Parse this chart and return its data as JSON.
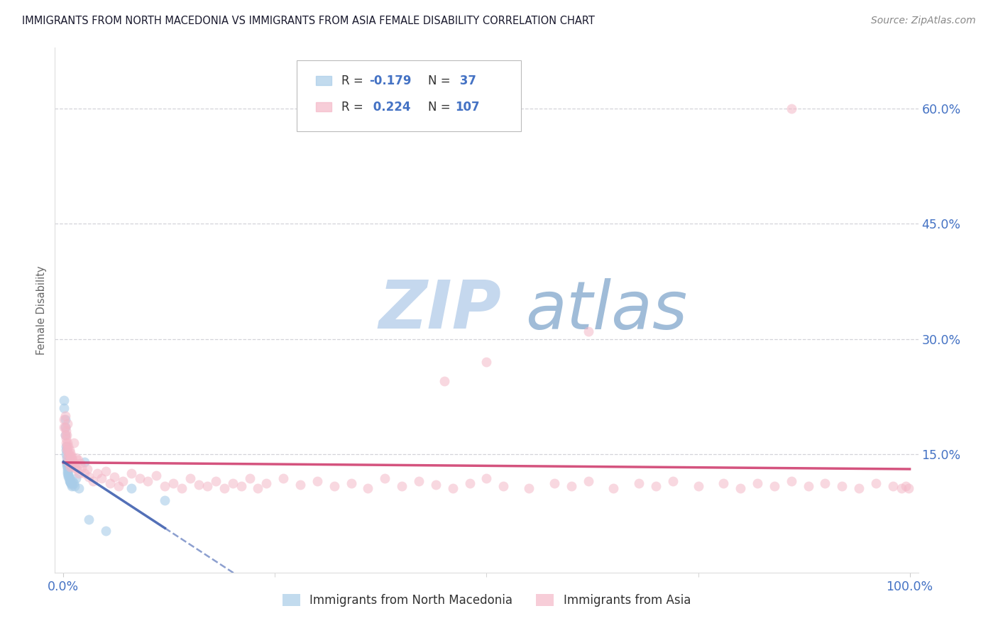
{
  "title": "IMMIGRANTS FROM NORTH MACEDONIA VS IMMIGRANTS FROM ASIA FEMALE DISABILITY CORRELATION CHART",
  "source": "Source: ZipAtlas.com",
  "ylabel": "Female Disability",
  "legend_blue_label": "Immigrants from North Macedonia",
  "legend_pink_label": "Immigrants from Asia",
  "blue_color": "#a8cce8",
  "pink_color": "#f4b8c8",
  "blue_line_color": "#4060b0",
  "pink_line_color": "#d04070",
  "background_color": "#ffffff",
  "grid_color": "#c8c8d0",
  "title_color": "#1a1a2e",
  "axis_tick_color": "#4472c4",
  "watermark_zip_color": "#c8d8ec",
  "watermark_atlas_color": "#9ab8d8",
  "blue_x": [
    0.001,
    0.001,
    0.002,
    0.002,
    0.002,
    0.003,
    0.003,
    0.003,
    0.004,
    0.004,
    0.004,
    0.004,
    0.005,
    0.005,
    0.005,
    0.005,
    0.006,
    0.006,
    0.006,
    0.007,
    0.007,
    0.007,
    0.008,
    0.008,
    0.009,
    0.01,
    0.01,
    0.011,
    0.012,
    0.013,
    0.015,
    0.018,
    0.025,
    0.03,
    0.05,
    0.08,
    0.12
  ],
  "blue_y": [
    0.22,
    0.21,
    0.195,
    0.185,
    0.175,
    0.16,
    0.155,
    0.15,
    0.145,
    0.14,
    0.138,
    0.135,
    0.133,
    0.13,
    0.128,
    0.125,
    0.124,
    0.122,
    0.12,
    0.118,
    0.116,
    0.115,
    0.114,
    0.113,
    0.112,
    0.11,
    0.108,
    0.115,
    0.112,
    0.108,
    0.118,
    0.105,
    0.14,
    0.065,
    0.05,
    0.105,
    0.09
  ],
  "pink_x": [
    0.001,
    0.001,
    0.002,
    0.002,
    0.002,
    0.003,
    0.003,
    0.003,
    0.004,
    0.004,
    0.004,
    0.005,
    0.005,
    0.005,
    0.005,
    0.006,
    0.006,
    0.006,
    0.007,
    0.007,
    0.007,
    0.008,
    0.008,
    0.008,
    0.009,
    0.009,
    0.01,
    0.01,
    0.011,
    0.012,
    0.013,
    0.014,
    0.015,
    0.016,
    0.017,
    0.018,
    0.02,
    0.022,
    0.025,
    0.028,
    0.03,
    0.035,
    0.04,
    0.045,
    0.05,
    0.055,
    0.06,
    0.065,
    0.07,
    0.08,
    0.09,
    0.1,
    0.11,
    0.12,
    0.13,
    0.14,
    0.15,
    0.16,
    0.17,
    0.18,
    0.19,
    0.2,
    0.21,
    0.22,
    0.23,
    0.24,
    0.26,
    0.28,
    0.3,
    0.32,
    0.34,
    0.36,
    0.38,
    0.4,
    0.42,
    0.44,
    0.46,
    0.48,
    0.5,
    0.52,
    0.55,
    0.58,
    0.6,
    0.62,
    0.65,
    0.68,
    0.7,
    0.72,
    0.75,
    0.78,
    0.8,
    0.82,
    0.84,
    0.86,
    0.88,
    0.9,
    0.92,
    0.94,
    0.96,
    0.98,
    0.99,
    0.995,
    0.999,
    0.86,
    0.62,
    0.5,
    0.45
  ],
  "pink_y": [
    0.195,
    0.185,
    0.2,
    0.175,
    0.185,
    0.17,
    0.165,
    0.18,
    0.175,
    0.16,
    0.155,
    0.19,
    0.165,
    0.155,
    0.145,
    0.16,
    0.15,
    0.14,
    0.155,
    0.148,
    0.138,
    0.152,
    0.143,
    0.133,
    0.148,
    0.138,
    0.145,
    0.135,
    0.142,
    0.165,
    0.138,
    0.132,
    0.145,
    0.13,
    0.142,
    0.125,
    0.138,
    0.132,
    0.125,
    0.13,
    0.12,
    0.115,
    0.125,
    0.118,
    0.128,
    0.112,
    0.12,
    0.108,
    0.115,
    0.125,
    0.118,
    0.115,
    0.122,
    0.108,
    0.112,
    0.105,
    0.118,
    0.11,
    0.108,
    0.115,
    0.105,
    0.112,
    0.108,
    0.118,
    0.105,
    0.112,
    0.118,
    0.11,
    0.115,
    0.108,
    0.112,
    0.105,
    0.118,
    0.108,
    0.115,
    0.11,
    0.105,
    0.112,
    0.118,
    0.108,
    0.105,
    0.112,
    0.108,
    0.115,
    0.105,
    0.112,
    0.108,
    0.115,
    0.108,
    0.112,
    0.105,
    0.112,
    0.108,
    0.115,
    0.108,
    0.112,
    0.108,
    0.105,
    0.112,
    0.108,
    0.105,
    0.108,
    0.105,
    0.6,
    0.31,
    0.27,
    0.245
  ],
  "blue_size": 100,
  "pink_size": 100,
  "ylim_min": -0.005,
  "ylim_max": 0.68,
  "xlim_min": -0.01,
  "xlim_max": 1.01,
  "y_ticks": [
    0.15,
    0.3,
    0.45,
    0.6
  ],
  "y_tick_labels": [
    "15.0%",
    "30.0%",
    "45.0%",
    "60.0%"
  ],
  "x_ticks": [
    0.0,
    1.0
  ],
  "x_tick_labels": [
    "0.0%",
    "100.0%"
  ]
}
